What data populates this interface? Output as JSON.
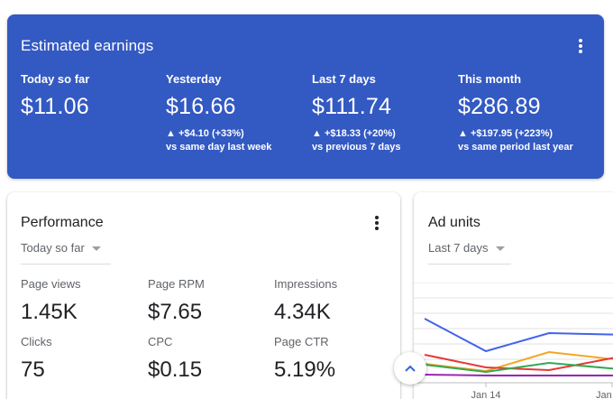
{
  "earnings": {
    "title": "Estimated earnings",
    "metrics": [
      {
        "label": "Today so far",
        "value": "$11.06",
        "delta": "",
        "comparison": ""
      },
      {
        "label": "Yesterday",
        "value": "$16.66",
        "delta": "▲ +$4.10 (+33%)",
        "comparison": "vs same day last week"
      },
      {
        "label": "Last 7 days",
        "value": "$111.74",
        "delta": "▲ +$18.33 (+20%)",
        "comparison": "vs previous 7 days"
      },
      {
        "label": "This month",
        "value": "$286.89",
        "delta": "▲ +$197.95 (+223%)",
        "comparison": "vs same period last year"
      }
    ]
  },
  "performance": {
    "title": "Performance",
    "range": "Today so far",
    "stats": [
      {
        "label": "Page views",
        "value": "1.45K"
      },
      {
        "label": "Page RPM",
        "value": "$7.65"
      },
      {
        "label": "Impressions",
        "value": "4.34K"
      },
      {
        "label": "Clicks",
        "value": "75"
      },
      {
        "label": "CPC",
        "value": "$0.15"
      },
      {
        "label": "Page CTR",
        "value": "5.19%"
      }
    ]
  },
  "ad_units": {
    "title": "Ad units",
    "range": "Last 7 days",
    "x_ticks": [
      "Jan 14",
      "Jan"
    ]
  },
  "colors": {
    "accent": "#3359c2",
    "series": [
      "#4263eb",
      "#f5a623",
      "#e53935",
      "#34a853",
      "#9c27b0"
    ]
  },
  "icons": {
    "card_menu": "more-vert-icon",
    "dropdown": "caret-down-icon",
    "scroll_top": "chevron-up-icon"
  }
}
